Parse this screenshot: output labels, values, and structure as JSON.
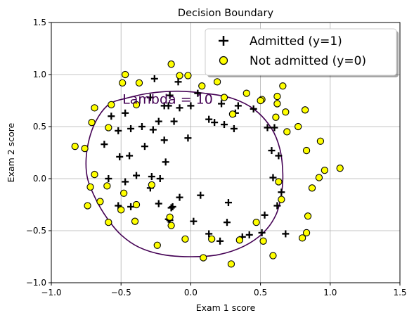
{
  "chart_data": {
    "type": "scatter",
    "title": "Decision Boundary",
    "xlabel": "Exam 1 score",
    "ylabel": "Exam 2 score",
    "xlim": [
      -1.0,
      1.5
    ],
    "ylim": [
      -1.0,
      1.5
    ],
    "xticks": [
      "−1.0",
      "−0.5",
      "0.0",
      "0.5",
      "1.0",
      "1.5"
    ],
    "yticks": [
      "−1.0",
      "−0.5",
      "0.0",
      "0.5",
      "1.0",
      "1.5"
    ],
    "grid": true,
    "legend": {
      "placement": "top-right"
    },
    "colors": {
      "admitted": "#000000",
      "not_admitted_fill": "#ffff00",
      "boundary": "#440154"
    },
    "series": [
      {
        "name": "Admitted (y=1)",
        "marker": "plus",
        "points": [
          [
            -0.26,
            0.96
          ],
          [
            -0.09,
            0.93
          ],
          [
            -0.15,
            0.8
          ],
          [
            -0.29,
            0.78
          ],
          [
            -0.19,
            0.7
          ],
          [
            -0.16,
            0.7
          ],
          [
            -0.08,
            0.68
          ],
          [
            0.0,
            0.7
          ],
          [
            0.05,
            0.82
          ],
          [
            -0.12,
            0.55
          ],
          [
            -0.23,
            0.55
          ],
          [
            -0.27,
            0.47
          ],
          [
            -0.35,
            0.5
          ],
          [
            -0.47,
            0.63
          ],
          [
            -0.57,
            0.6
          ],
          [
            -0.62,
            0.33
          ],
          [
            -0.52,
            0.46
          ],
          [
            -0.43,
            0.48
          ],
          [
            -0.33,
            0.31
          ],
          [
            -0.44,
            0.22
          ],
          [
            -0.51,
            0.21
          ],
          [
            -0.59,
            0.0
          ],
          [
            -0.47,
            -0.03
          ],
          [
            -0.39,
            0.03
          ],
          [
            -0.28,
            0.02
          ],
          [
            -0.22,
            0.0
          ],
          [
            -0.18,
            0.16
          ],
          [
            -0.19,
            0.37
          ],
          [
            -0.29,
            -0.09
          ],
          [
            -0.23,
            -0.24
          ],
          [
            -0.13,
            -0.27
          ],
          [
            -0.08,
            -0.18
          ],
          [
            -0.02,
            0.39
          ],
          [
            0.13,
            0.57
          ],
          [
            0.17,
            0.54
          ],
          [
            0.24,
            0.52
          ],
          [
            0.22,
            0.72
          ],
          [
            0.31,
            0.48
          ],
          [
            0.34,
            0.7
          ],
          [
            0.32,
            0.63
          ],
          [
            0.45,
            0.67
          ],
          [
            0.55,
            0.49
          ],
          [
            0.6,
            0.49
          ],
          [
            0.58,
            0.27
          ],
          [
            0.63,
            0.22
          ],
          [
            0.59,
            0.01
          ],
          [
            0.65,
            -0.13
          ],
          [
            0.62,
            -0.26
          ],
          [
            0.53,
            -0.35
          ],
          [
            0.51,
            -0.52
          ],
          [
            0.42,
            -0.54
          ],
          [
            0.37,
            -0.56
          ],
          [
            0.68,
            -0.53
          ],
          [
            0.27,
            -0.23
          ],
          [
            0.26,
            -0.42
          ],
          [
            0.21,
            -0.6
          ],
          [
            0.13,
            -0.53
          ],
          [
            0.02,
            -0.41
          ],
          [
            0.07,
            -0.16
          ],
          [
            -0.16,
            -0.39
          ],
          [
            -0.14,
            -0.28
          ],
          [
            -0.43,
            -0.27
          ],
          [
            -0.15,
            -0.4
          ],
          [
            -0.52,
            -0.26
          ]
        ]
      },
      {
        "name": "Not admitted (y=0)",
        "marker": "circle",
        "points": [
          [
            -0.14,
            1.1
          ],
          [
            -0.08,
            0.99
          ],
          [
            -0.02,
            0.99
          ],
          [
            -0.47,
            1.0
          ],
          [
            -0.49,
            0.92
          ],
          [
            -0.37,
            0.92
          ],
          [
            0.08,
            0.89
          ],
          [
            0.19,
            0.93
          ],
          [
            -0.39,
            0.71
          ],
          [
            -0.57,
            0.71
          ],
          [
            -0.69,
            0.68
          ],
          [
            -0.71,
            0.54
          ],
          [
            -0.59,
            0.49
          ],
          [
            -0.83,
            0.31
          ],
          [
            -0.76,
            0.29
          ],
          [
            -0.69,
            0.04
          ],
          [
            -0.72,
            -0.08
          ],
          [
            -0.6,
            -0.07
          ],
          [
            -0.65,
            -0.22
          ],
          [
            -0.74,
            -0.26
          ],
          [
            -0.48,
            -0.14
          ],
          [
            -0.39,
            -0.25
          ],
          [
            -0.5,
            -0.3
          ],
          [
            -0.59,
            -0.42
          ],
          [
            -0.4,
            -0.41
          ],
          [
            -0.28,
            -0.06
          ],
          [
            -0.15,
            -0.37
          ],
          [
            -0.14,
            -0.45
          ],
          [
            -0.24,
            -0.64
          ],
          [
            -0.04,
            -0.58
          ],
          [
            0.09,
            -0.76
          ],
          [
            0.15,
            -0.58
          ],
          [
            0.29,
            -0.82
          ],
          [
            0.35,
            -0.59
          ],
          [
            0.47,
            -0.42
          ],
          [
            0.52,
            -0.6
          ],
          [
            0.59,
            -0.74
          ],
          [
            0.63,
            -0.03
          ],
          [
            0.65,
            -0.2
          ],
          [
            0.8,
            -0.57
          ],
          [
            0.83,
            -0.52
          ],
          [
            0.84,
            -0.36
          ],
          [
            0.87,
            -0.09
          ],
          [
            0.92,
            0.01
          ],
          [
            0.96,
            0.08
          ],
          [
            1.07,
            0.1
          ],
          [
            0.93,
            0.36
          ],
          [
            0.83,
            0.27
          ],
          [
            0.77,
            0.5
          ],
          [
            0.69,
            0.45
          ],
          [
            0.82,
            0.66
          ],
          [
            0.68,
            0.64
          ],
          [
            0.62,
            0.72
          ],
          [
            0.61,
            0.59
          ],
          [
            0.51,
            0.76
          ],
          [
            0.4,
            0.82
          ],
          [
            0.5,
            0.75
          ],
          [
            0.62,
            0.79
          ],
          [
            0.66,
            0.89
          ],
          [
            0.3,
            0.62
          ],
          [
            0.24,
            0.78
          ]
        ]
      }
    ],
    "boundary": {
      "label": "Lambda = 10",
      "points": [
        [
          -0.58,
          0.72
        ],
        [
          -0.47,
          0.77
        ],
        [
          -0.3,
          0.82
        ],
        [
          -0.1,
          0.84
        ],
        [
          0.1,
          0.82
        ],
        [
          0.3,
          0.77
        ],
        [
          0.46,
          0.66
        ],
        [
          0.58,
          0.48
        ],
        [
          0.64,
          0.28
        ],
        [
          0.66,
          0.05
        ],
        [
          0.65,
          -0.15
        ],
        [
          0.61,
          -0.35
        ],
        [
          0.52,
          -0.52
        ],
        [
          0.38,
          -0.65
        ],
        [
          0.2,
          -0.73
        ],
        [
          0.0,
          -0.75
        ],
        [
          -0.2,
          -0.73
        ],
        [
          -0.37,
          -0.66
        ],
        [
          -0.5,
          -0.54
        ],
        [
          -0.6,
          -0.38
        ],
        [
          -0.68,
          -0.2
        ],
        [
          -0.74,
          0.0
        ],
        [
          -0.75,
          0.2
        ],
        [
          -0.72,
          0.42
        ],
        [
          -0.66,
          0.6
        ],
        [
          -0.58,
          0.72
        ]
      ]
    }
  }
}
